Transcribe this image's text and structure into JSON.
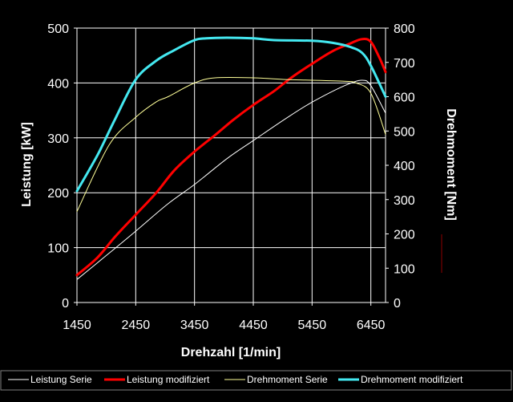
{
  "chart_data": {
    "type": "line",
    "xlabel": "Drehzahl [1/min]",
    "ylabel": "Leistung [kW]",
    "y2label": "Drehmoment [Nm]",
    "xlim": [
      1450,
      6700
    ],
    "ylim": [
      0,
      500
    ],
    "y2lim": [
      0,
      800
    ],
    "xticks": [
      1450,
      2450,
      3450,
      4450,
      5450,
      6450
    ],
    "yticks": [
      0,
      100,
      200,
      300,
      400,
      500
    ],
    "y2ticks": [
      0,
      100,
      200,
      300,
      400,
      500,
      600,
      700,
      800
    ],
    "grid": true,
    "legend_position": "bottom",
    "background": "#000000",
    "series": [
      {
        "name": "Leistung Serie",
        "axis": "left",
        "color": "#ffffff",
        "x": [
          1450,
          2000,
          2450,
          3000,
          3450,
          4000,
          4450,
          5000,
          5450,
          6000,
          6300,
          6450,
          6700
        ],
        "y": [
          42,
          90,
          130,
          180,
          215,
          262,
          295,
          335,
          365,
          395,
          405,
          395,
          345
        ]
      },
      {
        "name": "Leistung modifiziert",
        "axis": "left",
        "color": "#ff0000",
        "x": [
          1450,
          1800,
          2100,
          2450,
          2800,
          3100,
          3450,
          3800,
          4100,
          4450,
          4800,
          5100,
          5450,
          5800,
          6100,
          6300,
          6450,
          6600,
          6700
        ],
        "y": [
          50,
          82,
          120,
          160,
          200,
          240,
          275,
          305,
          332,
          360,
          385,
          410,
          435,
          458,
          472,
          480,
          475,
          445,
          420
        ]
      },
      {
        "name": "Drehmoment Serie",
        "axis": "right",
        "color": "#ffff99",
        "x": [
          1450,
          2000,
          2450,
          2800,
          3000,
          3450,
          3800,
          4450,
          5000,
          5450,
          6000,
          6200,
          6450,
          6700
        ],
        "y": [
          265,
          460,
          540,
          585,
          600,
          640,
          655,
          655,
          650,
          648,
          645,
          640,
          610,
          490
        ]
      },
      {
        "name": "Drehmoment modifiziert",
        "axis": "right",
        "color": "#44e8f0",
        "x": [
          1450,
          1800,
          2100,
          2450,
          2800,
          3100,
          3450,
          3650,
          4000,
          4450,
          4800,
          5450,
          5800,
          6100,
          6300,
          6450,
          6700
        ],
        "y": [
          325,
          430,
          535,
          650,
          705,
          735,
          765,
          770,
          772,
          770,
          765,
          763,
          757,
          745,
          728,
          690,
          600
        ]
      }
    ]
  }
}
